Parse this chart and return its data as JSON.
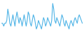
{
  "values": [
    0,
    0,
    -1,
    0,
    0,
    1,
    5,
    3,
    0,
    -1,
    1,
    3,
    1,
    -1,
    2,
    4,
    2,
    0,
    2,
    1,
    -1,
    1,
    3,
    1,
    -1,
    1,
    4,
    3,
    0,
    -1,
    1,
    3,
    2,
    0,
    -2,
    -1,
    1,
    0,
    -1,
    -2,
    0,
    2,
    1,
    -1,
    0,
    2,
    1,
    0,
    -1,
    1,
    7,
    5,
    1,
    0,
    2,
    1,
    0,
    -1,
    1,
    3,
    2,
    0,
    -1,
    1,
    0,
    -1,
    -2,
    0,
    1,
    0,
    -1,
    1,
    2,
    1,
    0,
    2,
    3,
    2,
    1,
    0
  ],
  "line_color": "#4db3e6",
  "background_color": "#ffffff",
  "linewidth": 0.8
}
